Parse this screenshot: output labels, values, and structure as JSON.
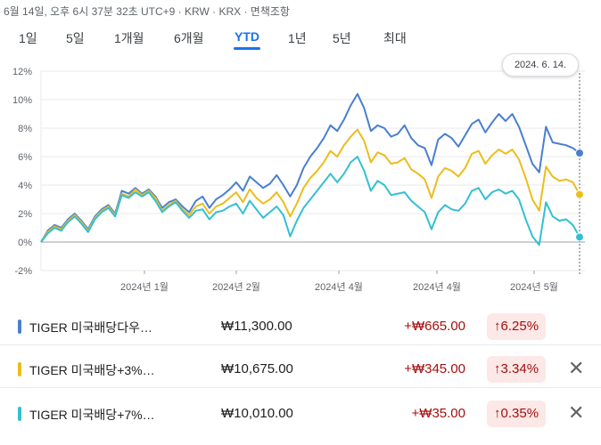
{
  "header": {
    "meta": "6월 14일, 오후 6시 37분 32초 UTC+9 · KRW · KRX · 면책조항"
  },
  "tabs": [
    {
      "label": "1일",
      "active": false
    },
    {
      "label": "5일",
      "active": false
    },
    {
      "label": "1개월",
      "active": false
    },
    {
      "label": "6개월",
      "active": false
    },
    {
      "label": "YTD",
      "active": true
    },
    {
      "label": "1년",
      "active": false
    },
    {
      "label": "5년",
      "active": false
    },
    {
      "label": "최대",
      "active": false
    }
  ],
  "tooltip": {
    "label": "2024. 6. 14."
  },
  "chart_data": {
    "type": "line",
    "yticks": [
      "12%",
      "10%",
      "8%",
      "6%",
      "4%",
      "2%",
      "0%",
      "-2%"
    ],
    "ylim": [
      -2,
      12
    ],
    "x_tick_labels": [
      "2024년 1월",
      "2024년 2월",
      "2024년 4월",
      "2024년 4월",
      "2024년 5월"
    ],
    "series": [
      {
        "name": "TIGER 미국배당다우…",
        "color": "#4a7fd0",
        "values": [
          0,
          0.8,
          1.2,
          1.0,
          1.6,
          2.0,
          1.5,
          0.9,
          1.8,
          2.3,
          2.6,
          2.0,
          3.6,
          3.4,
          3.8,
          3.4,
          3.7,
          3.2,
          2.4,
          2.8,
          3.0,
          2.5,
          2.1,
          2.9,
          3.2,
          2.4,
          3.0,
          3.3,
          3.7,
          4.2,
          3.6,
          4.6,
          4.2,
          3.8,
          4.1,
          4.7,
          4.0,
          3.2,
          4.0,
          5.2,
          6.0,
          6.6,
          7.3,
          8.2,
          7.8,
          8.6,
          9.6,
          10.4,
          9.4,
          7.8,
          8.2,
          8.0,
          7.4,
          7.6,
          8.2,
          7.3,
          6.8,
          6.6,
          5.4,
          7.2,
          7.6,
          7.3,
          6.7,
          7.5,
          8.3,
          8.6,
          7.7,
          8.4,
          9.0,
          8.5,
          9.0,
          8.1,
          6.8,
          5.5,
          4.9,
          8.1,
          7.0,
          6.9,
          6.8,
          6.6,
          6.25
        ]
      },
      {
        "name": "TIGER 미국배당+3%…",
        "color": "#ecbd1c",
        "values": [
          0,
          0.7,
          1.1,
          0.9,
          1.5,
          1.9,
          1.4,
          0.8,
          1.7,
          2.2,
          2.5,
          1.9,
          3.4,
          3.2,
          3.7,
          3.3,
          3.6,
          3.1,
          2.2,
          2.6,
          2.9,
          2.3,
          1.9,
          2.5,
          2.7,
          2.0,
          2.5,
          2.7,
          3.1,
          3.5,
          2.8,
          3.7,
          3.1,
          2.7,
          3.0,
          3.5,
          2.8,
          1.8,
          2.7,
          3.8,
          4.5,
          5.0,
          5.6,
          6.4,
          6.0,
          6.8,
          7.4,
          7.9,
          7.1,
          5.6,
          6.3,
          6.1,
          5.5,
          5.6,
          5.9,
          5.1,
          4.8,
          4.4,
          3.1,
          4.6,
          5.2,
          5.0,
          4.6,
          5.2,
          6.2,
          6.4,
          5.5,
          6.1,
          6.5,
          6.2,
          6.5,
          5.8,
          4.5,
          3.0,
          2.2,
          5.3,
          4.6,
          4.3,
          4.4,
          4.2,
          3.34
        ]
      },
      {
        "name": "TIGER 미국배당+7%…",
        "color": "#33c0d1",
        "values": [
          0,
          0.6,
          1.0,
          0.8,
          1.4,
          1.8,
          1.3,
          0.7,
          1.6,
          2.1,
          2.4,
          1.8,
          3.3,
          3.1,
          3.5,
          3.2,
          3.5,
          2.9,
          2.1,
          2.5,
          2.8,
          2.2,
          1.7,
          2.2,
          2.3,
          1.6,
          2.1,
          2.2,
          2.5,
          2.7,
          2.0,
          2.9,
          2.3,
          1.7,
          2.1,
          2.5,
          1.9,
          0.4,
          1.5,
          2.4,
          3.0,
          3.6,
          4.2,
          4.8,
          4.2,
          4.8,
          5.6,
          6.0,
          5.0,
          3.6,
          4.3,
          4.0,
          3.3,
          3.4,
          3.5,
          2.9,
          2.5,
          2.1,
          0.9,
          2.1,
          2.6,
          2.3,
          2.2,
          2.7,
          3.6,
          3.8,
          3.0,
          3.5,
          3.7,
          3.4,
          3.6,
          3.0,
          1.6,
          0.4,
          -0.2,
          2.8,
          1.8,
          1.5,
          1.6,
          1.2,
          0.35
        ]
      }
    ]
  },
  "legend": [
    {
      "name": "TIGER 미국배당다우…",
      "price": "₩11,300.00",
      "change": "+₩665.00",
      "percent": "6.25%",
      "color": "#4a7fd0",
      "removable": false
    },
    {
      "name": "TIGER 미국배당+3%…",
      "price": "₩10,675.00",
      "change": "+₩345.00",
      "percent": "3.34%",
      "color": "#ecbd1c",
      "removable": true
    },
    {
      "name": "TIGER 미국배당+7%…",
      "price": "₩10,010.00",
      "change": "+₩35.00",
      "percent": "0.35%",
      "color": "#33c0d1",
      "removable": true
    }
  ],
  "icons": {
    "up_arrow": "arrow-up-icon",
    "close": "close-icon"
  },
  "colors": {
    "accent": "#1a73e8",
    "positive": "#a50e0e",
    "positive_bg": "#fce8e6"
  }
}
